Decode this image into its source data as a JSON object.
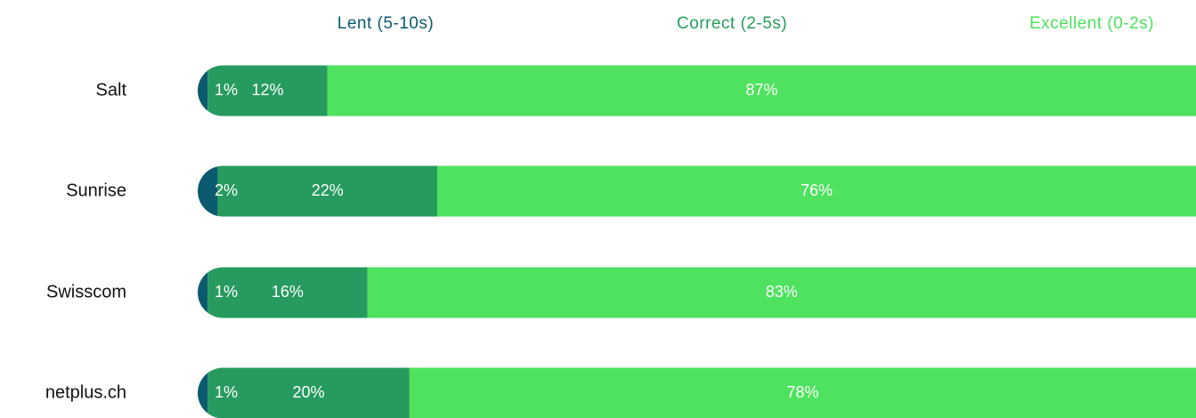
{
  "chart_data": {
    "type": "stacked-bar",
    "orientation": "horizontal",
    "categories": [
      "Salt",
      "Sunrise",
      "Swisscom",
      "netplus.ch"
    ],
    "series": [
      {
        "name": "Lent (5-10s)",
        "color": "#0b5a6d",
        "values": [
          1,
          2,
          1,
          1
        ],
        "value_labels": [
          "1%",
          "2%",
          "1%",
          "1%"
        ]
      },
      {
        "name": "Correct (2-5s)",
        "color": "#279b5f",
        "values": [
          12,
          22,
          16,
          20
        ],
        "value_labels": [
          "12%",
          "22%",
          "16%",
          "20%"
        ]
      },
      {
        "name": "Excellent (0-2s)",
        "color": "#4ee25e",
        "values": [
          87,
          76,
          83,
          78
        ],
        "value_labels": [
          "87%",
          "76%",
          "83%",
          "78%"
        ]
      }
    ]
  }
}
